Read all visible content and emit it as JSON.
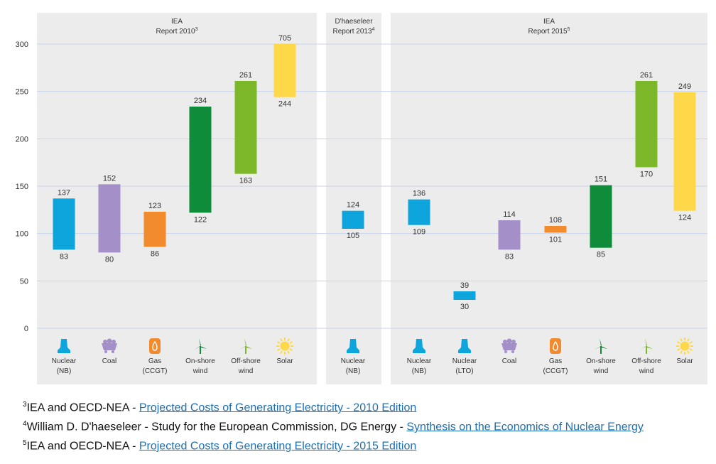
{
  "chart_data": {
    "type": "floating-bar",
    "ylim": [
      0,
      300
    ],
    "yticks": [
      0,
      50,
      100,
      150,
      200,
      250,
      300
    ],
    "groups": [
      {
        "title": "IEA",
        "subtitle": "Report 2010",
        "sup": "3",
        "items": [
          {
            "label": [
              "Nuclear",
              "(NB)"
            ],
            "low": 83,
            "high": 137,
            "color": "#0ea5dc",
            "icon": "nuclear-icon"
          },
          {
            "label": [
              "Coal"
            ],
            "low": 80,
            "high": 152,
            "color": "#a48fc8",
            "icon": "coal-icon"
          },
          {
            "label": [
              "Gas",
              "(CCGT)"
            ],
            "low": 86,
            "high": 123,
            "color": "#f28a2e",
            "icon": "gas-icon"
          },
          {
            "label": [
              "On-shore",
              "wind"
            ],
            "low": 122,
            "high": 234,
            "color": "#0e8c3a",
            "icon": "wind-turbine-icon"
          },
          {
            "label": [
              "Off-shore",
              "wind"
            ],
            "low": 163,
            "high": 261,
            "color": "#7cb82a",
            "icon": "wind-turbine-icon"
          },
          {
            "label": [
              "Solar"
            ],
            "low": 244,
            "high": 705,
            "color": "#ffd84a",
            "icon": "sun-icon",
            "clipped": true
          }
        ]
      },
      {
        "title": "D'haeseleer",
        "subtitle": "Report 2013",
        "sup": "4",
        "items": [
          {
            "label": [
              "Nuclear",
              "(NB)"
            ],
            "low": 105,
            "high": 124,
            "color": "#0ea5dc",
            "icon": "nuclear-icon"
          }
        ]
      },
      {
        "title": "IEA",
        "subtitle": "Report  2015",
        "sup": "5",
        "items": [
          {
            "label": [
              "Nuclear",
              "(NB)"
            ],
            "low": 109,
            "high": 136,
            "color": "#0ea5dc",
            "icon": "nuclear-icon"
          },
          {
            "label": [
              "Nuclear",
              "(LTO)"
            ],
            "low": 30,
            "high": 39,
            "color": "#0ea5dc",
            "icon": "nuclear-icon"
          },
          {
            "label": [
              "Coal"
            ],
            "low": 83,
            "high": 114,
            "color": "#a48fc8",
            "icon": "coal-icon"
          },
          {
            "label": [
              "Gas",
              "(CCGT)"
            ],
            "low": 101,
            "high": 108,
            "color": "#f28a2e",
            "icon": "gas-icon"
          },
          {
            "label": [
              "On-shore",
              "wind"
            ],
            "low": 85,
            "high": 151,
            "color": "#0e8c3a",
            "icon": "wind-turbine-icon"
          },
          {
            "label": [
              "Off-shore",
              "wind"
            ],
            "low": 170,
            "high": 261,
            "color": "#7cb82a",
            "icon": "wind-turbine-icon"
          },
          {
            "label": [
              "Solar"
            ],
            "low": 124,
            "high": 249,
            "color": "#ffd84a",
            "icon": "sun-icon"
          }
        ]
      }
    ]
  },
  "footnotes": [
    {
      "sup": "3",
      "text": "IEA and OECD-NEA - ",
      "link": "Projected Costs of Generating Electricity - 2010 Edition"
    },
    {
      "sup": "4",
      "text": "William D. D'haeseleer - Study for the European Commission, DG Energy - ",
      "link": "Synthesis on the Economics of Nuclear Energy"
    },
    {
      "sup": "5",
      "text": "IEA and OECD-NEA - ",
      "link": "Projected Costs of Generating Electricity - 2015 Edition"
    }
  ],
  "colors": {
    "panel": "#ececec",
    "grid": "#c9d3ea"
  }
}
